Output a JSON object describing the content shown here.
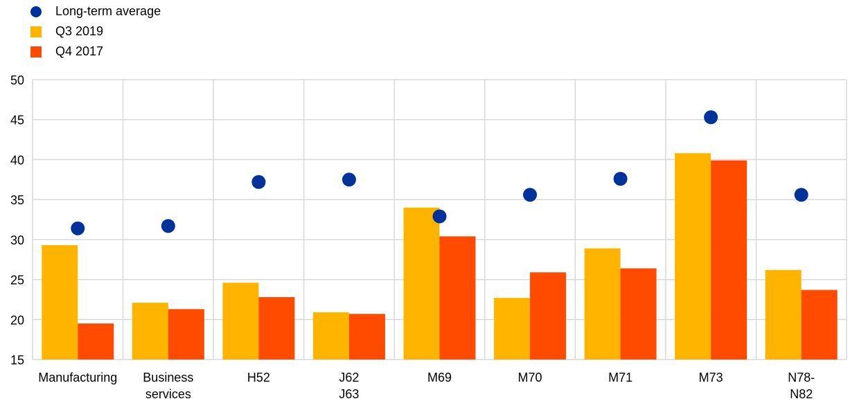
{
  "chart_data": {
    "type": "bar",
    "categories": [
      [
        "Manufacturing"
      ],
      [
        "Business",
        "services"
      ],
      [
        "H52"
      ],
      [
        "J62",
        "J63"
      ],
      [
        "M69"
      ],
      [
        "M70"
      ],
      [
        "M71"
      ],
      [
        "M73"
      ],
      [
        "N78-",
        "N82"
      ]
    ],
    "series": [
      {
        "name": "Q3 2019",
        "kind": "bar",
        "color": "#FFB400",
        "values": [
          29.3,
          22.1,
          24.6,
          20.9,
          34.0,
          22.7,
          28.9,
          40.8,
          26.2
        ]
      },
      {
        "name": "Q4 2017",
        "kind": "bar",
        "color": "#FF4B00",
        "values": [
          19.5,
          21.3,
          22.8,
          20.7,
          30.4,
          25.9,
          26.4,
          39.9,
          23.7
        ]
      },
      {
        "name": "Long-term average",
        "kind": "dot",
        "color": "#003299",
        "values": [
          31.4,
          31.7,
          37.2,
          37.5,
          32.9,
          35.6,
          37.6,
          45.3,
          35.6
        ]
      }
    ],
    "ylim": [
      15,
      50
    ],
    "yticks": [
      "15",
      "20",
      "25",
      "30",
      "35",
      "40",
      "45",
      "50"
    ],
    "grid": true,
    "legend_position": "top-left"
  },
  "legend": [
    {
      "label": "Long-term average",
      "shape": "dot",
      "color": "#003299"
    },
    {
      "label": "Q3 2019",
      "shape": "square",
      "color": "#FFB400"
    },
    {
      "label": "Q4 2017",
      "shape": "square",
      "color": "#FF4B00"
    }
  ]
}
